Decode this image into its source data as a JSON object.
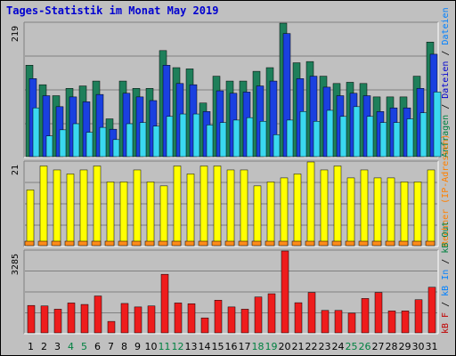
{
  "title": "Tages-Statistik im Monat May 2019",
  "chart_data": [
    {
      "type": "bar",
      "panel": "requests",
      "scale_label": "219",
      "ylim": [
        0,
        219
      ],
      "legend_text": "Anfragen / Dateien / Dateien",
      "legend_parts": [
        {
          "text": "Anfragen",
          "color": "#008040"
        },
        {
          "text": " / ",
          "color": "#000000"
        },
        {
          "text": "Dateien",
          "color": "#0000d0"
        },
        {
          "text": " / ",
          "color": "#000000"
        },
        {
          "text": "Dateien",
          "color": "#0080ff"
        }
      ],
      "categories": [
        "1",
        "2",
        "3",
        "4",
        "5",
        "6",
        "7",
        "8",
        "9",
        "10",
        "11",
        "12",
        "13",
        "14",
        "15",
        "16",
        "17",
        "18",
        "19",
        "20",
        "21",
        "22",
        "23",
        "24",
        "25",
        "26",
        "27",
        "28",
        "29",
        "30",
        "31"
      ],
      "series": [
        {
          "name": "Anfragen",
          "color": "#1e7f5a",
          "values": [
            150,
            118,
            100,
            112,
            116,
            124,
            62,
            124,
            112,
            112,
            174,
            146,
            144,
            88,
            132,
            124,
            124,
            140,
            146,
            219,
            154,
            156,
            132,
            120,
            122,
            120,
            98,
            98,
            98,
            132,
            188
          ]
        },
        {
          "name": "Dateien",
          "color": "#1a40e0",
          "values": [
            128,
            100,
            82,
            98,
            90,
            102,
            45,
            104,
            98,
            92,
            150,
            120,
            118,
            74,
            108,
            104,
            106,
            116,
            124,
            202,
            128,
            132,
            114,
            100,
            104,
            100,
            74,
            80,
            80,
            112,
            168
          ]
        },
        {
          "name": "Dateien",
          "color": "#3ad8f0",
          "values": [
            80,
            34,
            44,
            54,
            40,
            48,
            28,
            54,
            56,
            50,
            66,
            70,
            70,
            52,
            56,
            60,
            64,
            58,
            36,
            60,
            74,
            58,
            76,
            66,
            82,
            66,
            56,
            56,
            62,
            72,
            106
          ]
        }
      ]
    },
    {
      "type": "bar",
      "panel": "visits",
      "scale_label": "21",
      "ylim": [
        0,
        21
      ],
      "legend_text": "Rechner (IP-Adressen)",
      "legend_color": "#ff8000",
      "categories": [
        "1",
        "2",
        "3",
        "4",
        "5",
        "6",
        "7",
        "8",
        "9",
        "10",
        "11",
        "12",
        "13",
        "14",
        "15",
        "16",
        "17",
        "18",
        "19",
        "20",
        "21",
        "22",
        "23",
        "24",
        "25",
        "26",
        "27",
        "28",
        "29",
        "30",
        "31"
      ],
      "series": [
        {
          "name": "",
          "color": "#ffff00",
          "values": [
            14,
            20,
            19,
            18,
            19,
            20,
            16,
            16,
            19,
            16,
            15,
            20,
            18,
            20,
            20,
            19,
            19,
            15,
            16,
            17,
            18,
            21,
            19,
            20,
            17,
            19,
            17,
            17,
            16,
            16,
            19
          ]
        },
        {
          "name": "Rechner (IP-Adressen)",
          "color": "#ff8c1a",
          "values": [
            1,
            1,
            1,
            1,
            1,
            1,
            1,
            1,
            1,
            1,
            1,
            1,
            1,
            1,
            1,
            1,
            1,
            1,
            1,
            1,
            1,
            1,
            1,
            1,
            1,
            1,
            1,
            1,
            1,
            1,
            1
          ]
        }
      ]
    },
    {
      "type": "bar",
      "panel": "traffic",
      "scale_label": "3285",
      "ylim": [
        0,
        3285
      ],
      "legend_text": "kB F / kB In / kB Out",
      "legend_parts": [
        {
          "text": "kB F",
          "color": "#c00000"
        },
        {
          "text": " / ",
          "color": "#000000"
        },
        {
          "text": "kB In",
          "color": "#0080ff"
        },
        {
          "text": " / ",
          "color": "#000000"
        },
        {
          "text": "kB Out",
          "color": "#008040"
        }
      ],
      "categories": [
        "1",
        "2",
        "3",
        "4",
        "5",
        "6",
        "7",
        "8",
        "9",
        "10",
        "11",
        "12",
        "13",
        "14",
        "15",
        "16",
        "17",
        "18",
        "19",
        "20",
        "21",
        "22",
        "23",
        "24",
        "25",
        "26",
        "27",
        "28",
        "29",
        "30",
        "31"
      ],
      "series": [
        {
          "name": "kB F",
          "color": "#ee1c1c",
          "values": [
            1100,
            1080,
            950,
            1200,
            1140,
            1480,
            460,
            1180,
            1040,
            1080,
            2350,
            1200,
            1170,
            600,
            1310,
            1040,
            950,
            1440,
            1570,
            3285,
            1210,
            1620,
            900,
            900,
            790,
            1380,
            1620,
            880,
            880,
            1330,
            1830
          ]
        }
      ]
    }
  ],
  "day_labels": [
    {
      "text": "1",
      "color": "#000000"
    },
    {
      "text": "2",
      "color": "#000000"
    },
    {
      "text": "3",
      "color": "#000000"
    },
    {
      "text": "4",
      "color": "#008040"
    },
    {
      "text": "5",
      "color": "#008040"
    },
    {
      "text": "6",
      "color": "#000000"
    },
    {
      "text": "7",
      "color": "#000000"
    },
    {
      "text": "8",
      "color": "#000000"
    },
    {
      "text": "9",
      "color": "#000000"
    },
    {
      "text": "10",
      "color": "#000000"
    },
    {
      "text": "11",
      "color": "#008040"
    },
    {
      "text": "12",
      "color": "#008040"
    },
    {
      "text": "13",
      "color": "#000000"
    },
    {
      "text": "14",
      "color": "#000000"
    },
    {
      "text": "15",
      "color": "#000000"
    },
    {
      "text": "16",
      "color": "#000000"
    },
    {
      "text": "17",
      "color": "#000000"
    },
    {
      "text": "18",
      "color": "#008040"
    },
    {
      "text": "19",
      "color": "#008040"
    },
    {
      "text": "20",
      "color": "#000000"
    },
    {
      "text": "21",
      "color": "#000000"
    },
    {
      "text": "22",
      "color": "#000000"
    },
    {
      "text": "23",
      "color": "#000000"
    },
    {
      "text": "24",
      "color": "#000000"
    },
    {
      "text": "25",
      "color": "#008040"
    },
    {
      "text": "26",
      "color": "#008040"
    },
    {
      "text": "27",
      "color": "#000000"
    },
    {
      "text": "28",
      "color": "#000000"
    },
    {
      "text": "29",
      "color": "#000000"
    },
    {
      "text": "30",
      "color": "#000000"
    },
    {
      "text": "31",
      "color": "#000000"
    }
  ]
}
